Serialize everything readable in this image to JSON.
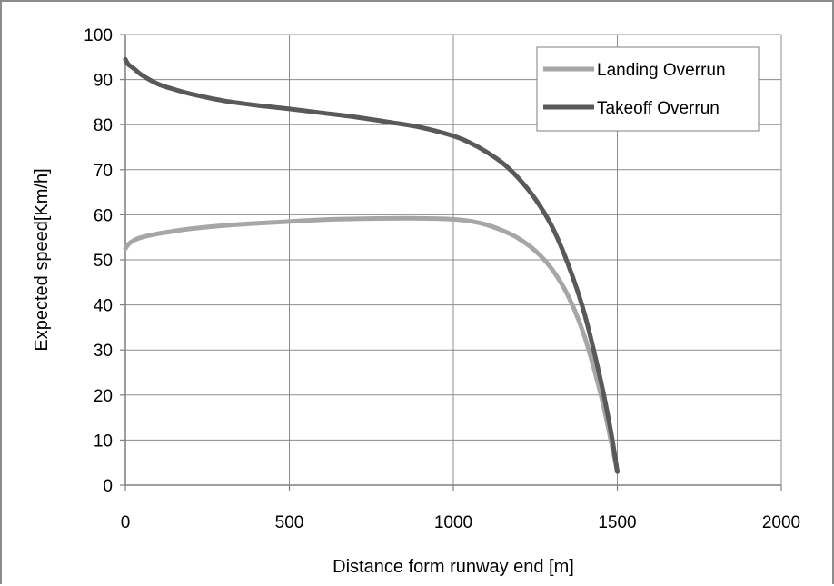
{
  "chart_data": {
    "type": "line",
    "xlabel": "Distance form runway end [m]",
    "ylabel": "Expected speed[Km/h]",
    "xlim": [
      0,
      2000
    ],
    "ylim": [
      0,
      100
    ],
    "x_ticks": [
      0,
      500,
      1000,
      1500,
      2000
    ],
    "y_ticks": [
      0,
      10,
      20,
      30,
      40,
      50,
      60,
      70,
      80,
      90,
      100
    ],
    "x_tick_labels": [
      "0",
      "500",
      "1000",
      "1500",
      "2000"
    ],
    "y_tick_labels": [
      "0",
      "10",
      "20",
      "30",
      "40",
      "50",
      "60",
      "70",
      "80",
      "90",
      "100"
    ],
    "grid": true,
    "legend_position": "top-right",
    "series": [
      {
        "name": "Landing Overrun",
        "color": "#a6a6a6",
        "points": [
          [
            0,
            52.5
          ],
          [
            10,
            53.5
          ],
          [
            25,
            54.3
          ],
          [
            50,
            55
          ],
          [
            100,
            55.8
          ],
          [
            150,
            56.4
          ],
          [
            200,
            56.9
          ],
          [
            300,
            57.6
          ],
          [
            400,
            58.1
          ],
          [
            500,
            58.5
          ],
          [
            600,
            58.9
          ],
          [
            700,
            59.1
          ],
          [
            800,
            59.2
          ],
          [
            900,
            59.2
          ],
          [
            1000,
            59
          ],
          [
            1050,
            58.6
          ],
          [
            1100,
            57.8
          ],
          [
            1150,
            56.5
          ],
          [
            1200,
            54.7
          ],
          [
            1250,
            52
          ],
          [
            1300,
            48
          ],
          [
            1350,
            42
          ],
          [
            1400,
            33
          ],
          [
            1450,
            20
          ],
          [
            1480,
            10
          ],
          [
            1500,
            3
          ]
        ]
      },
      {
        "name": "Takeoff Overrun",
        "color": "#595959",
        "points": [
          [
            0,
            94.5
          ],
          [
            5,
            93.8
          ],
          [
            10,
            93.3
          ],
          [
            25,
            92.5
          ],
          [
            50,
            91
          ],
          [
            100,
            89
          ],
          [
            150,
            87.8
          ],
          [
            200,
            86.8
          ],
          [
            300,
            85.3
          ],
          [
            400,
            84.3
          ],
          [
            500,
            83.5
          ],
          [
            600,
            82.6
          ],
          [
            700,
            81.7
          ],
          [
            800,
            80.6
          ],
          [
            900,
            79.4
          ],
          [
            1000,
            77.5
          ],
          [
            1050,
            76
          ],
          [
            1100,
            74
          ],
          [
            1150,
            71.5
          ],
          [
            1200,
            68
          ],
          [
            1250,
            63.5
          ],
          [
            1300,
            57.5
          ],
          [
            1350,
            49
          ],
          [
            1400,
            38
          ],
          [
            1450,
            23
          ],
          [
            1480,
            12
          ],
          [
            1500,
            3
          ]
        ]
      }
    ]
  }
}
